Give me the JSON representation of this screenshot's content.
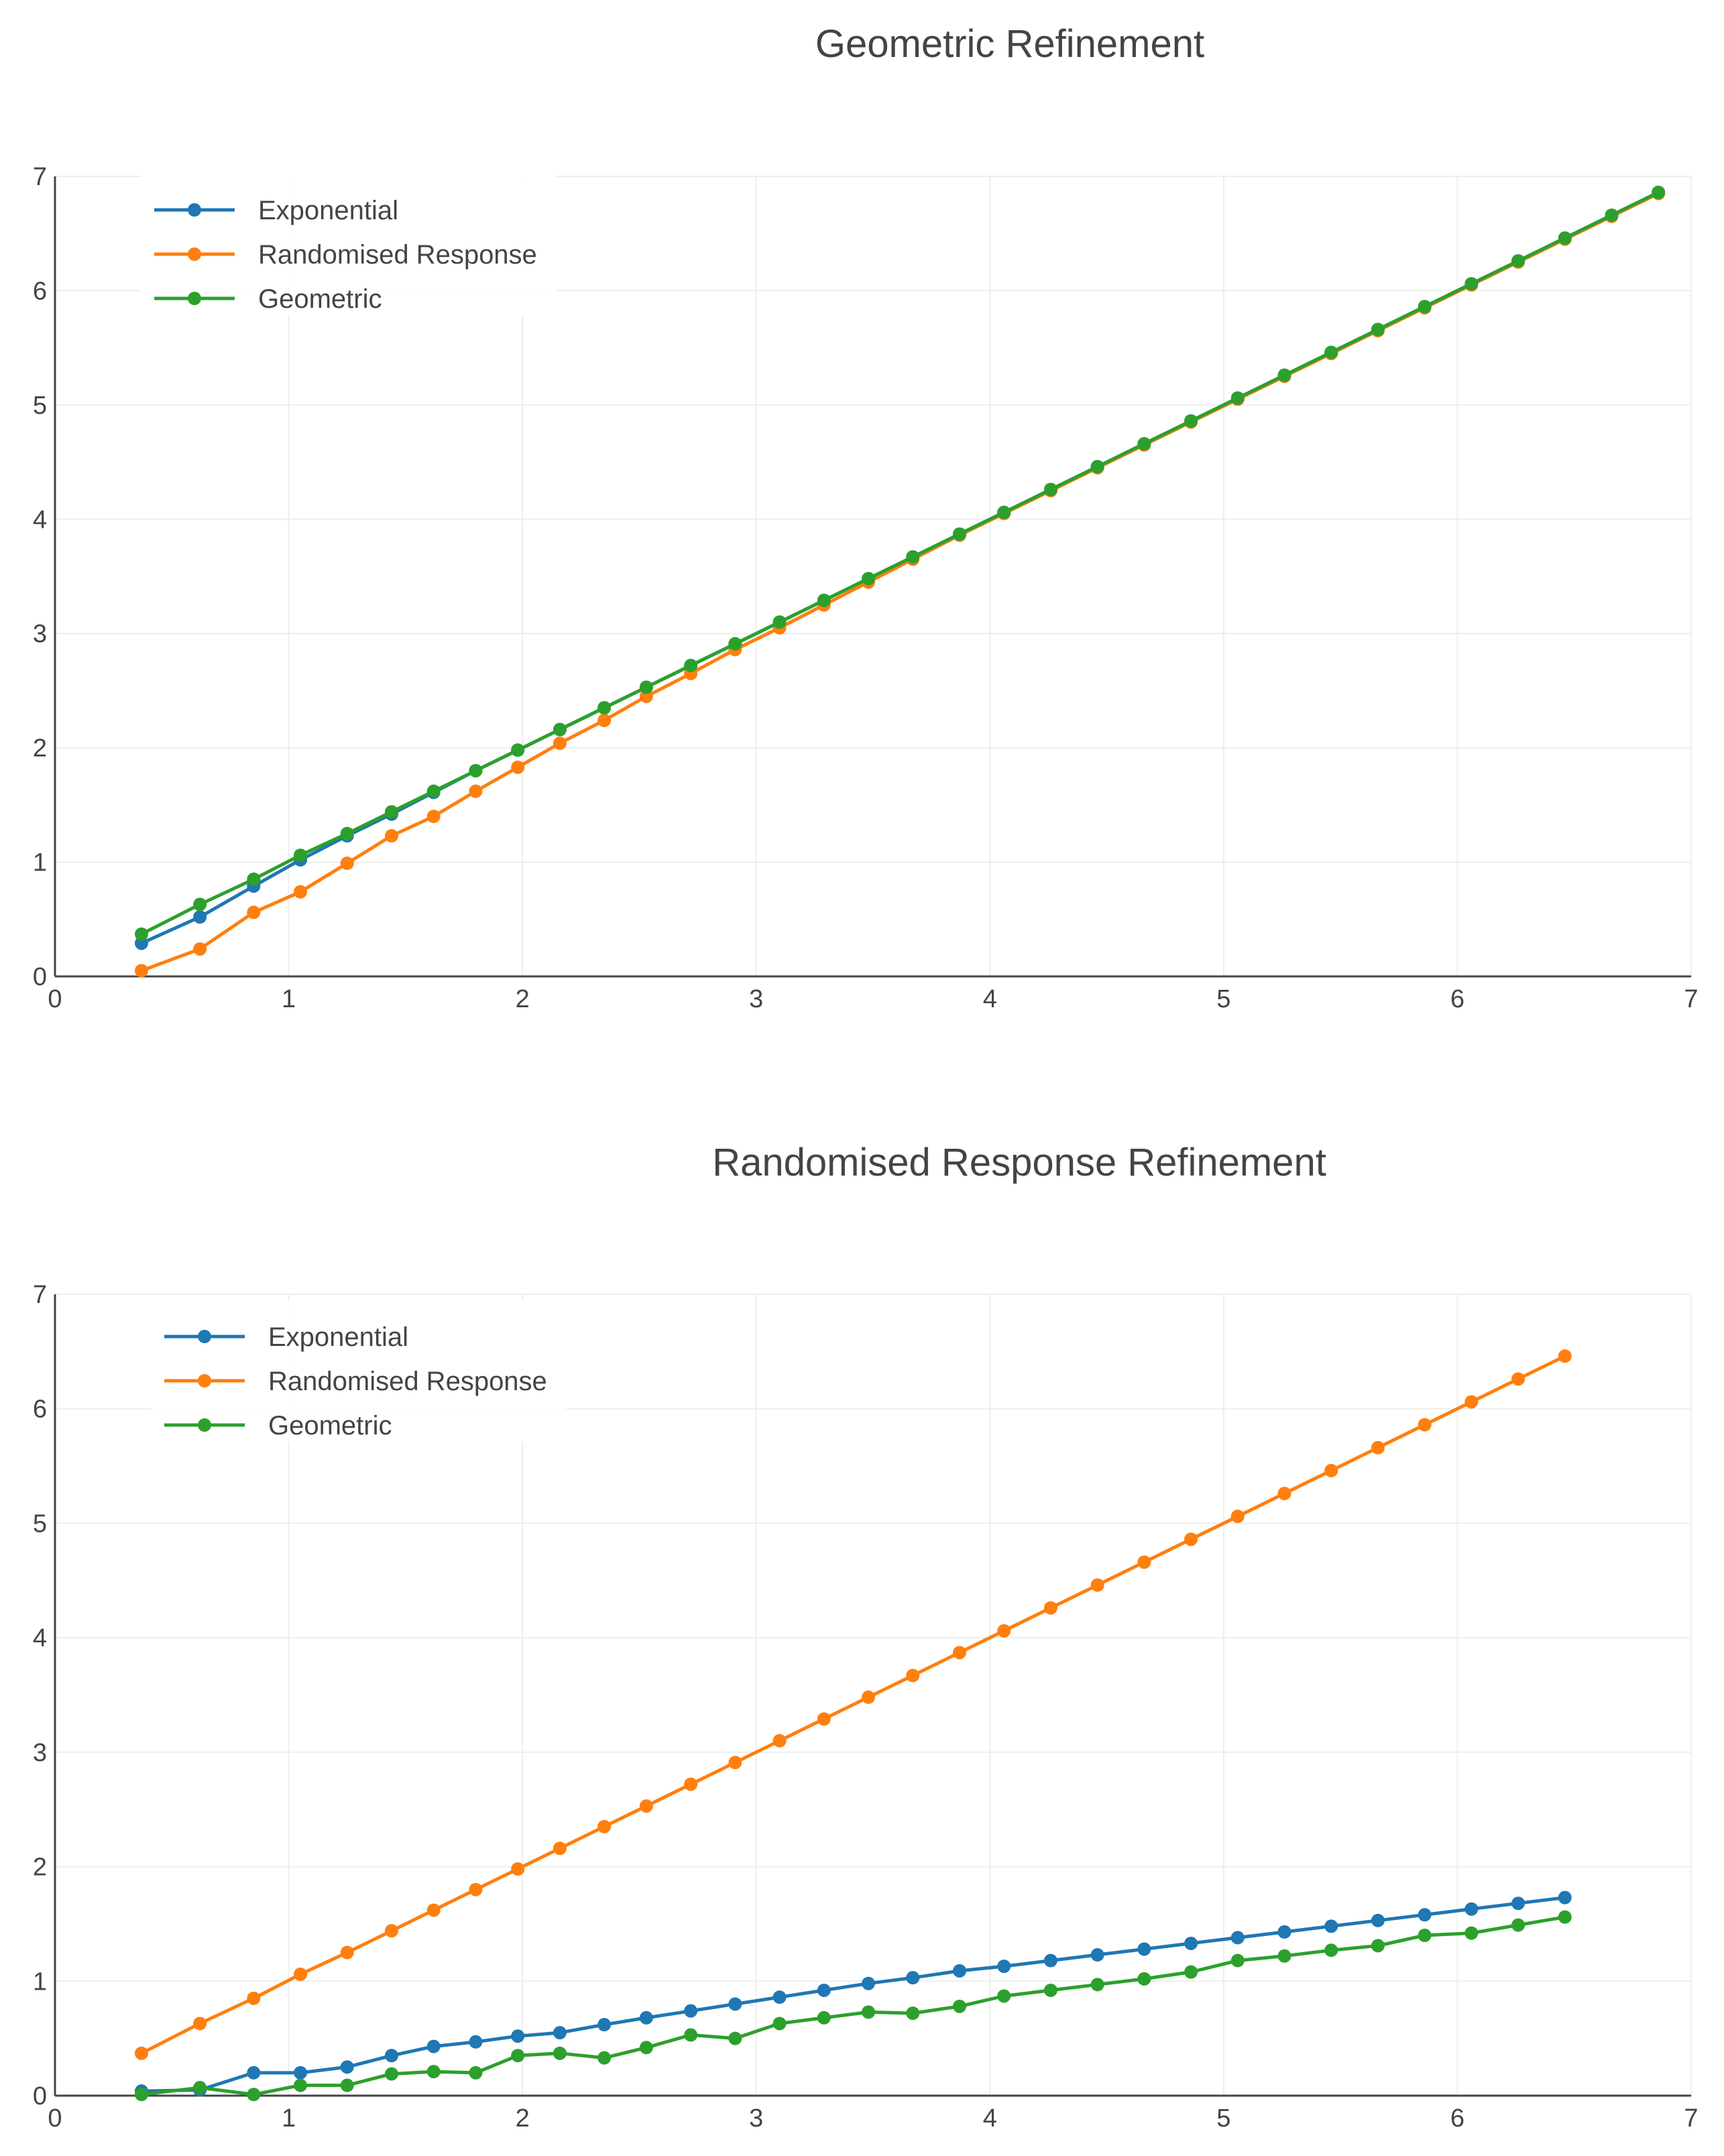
{
  "chart_data": [
    {
      "type": "line",
      "title": "Geometric Refinement",
      "xlabel": "",
      "ylabel": "",
      "xlim": [
        0,
        7
      ],
      "ylim": [
        0,
        7
      ],
      "xticks": [
        "0",
        "1",
        "2",
        "3",
        "4",
        "5",
        "6",
        "7"
      ],
      "yticks": [
        "0",
        "1",
        "2",
        "3",
        "4",
        "5",
        "6",
        "7"
      ],
      "grid": true,
      "legend": "top-left",
      "series": [
        {
          "name": "Exponential",
          "color": "#1f77b4",
          "x": [
            0.37,
            0.62,
            0.85,
            1.05,
            1.25,
            1.44,
            1.62,
            1.8,
            1.98,
            2.16,
            2.35,
            2.53,
            2.72,
            2.91,
            3.1,
            3.29,
            3.48,
            3.67,
            3.87,
            4.06,
            4.26,
            4.46,
            4.66,
            4.86,
            5.06,
            5.26,
            5.46,
            5.66,
            5.86,
            6.06,
            6.26,
            6.46,
            6.66,
            6.86
          ],
          "y": [
            0.29,
            0.52,
            0.79,
            1.02,
            1.23,
            1.42,
            1.61,
            1.8,
            1.98,
            2.16,
            2.35,
            2.53,
            2.72,
            2.91,
            3.1,
            3.29,
            3.48,
            3.67,
            3.87,
            4.06,
            4.26,
            4.46,
            4.66,
            4.86,
            5.06,
            5.26,
            5.46,
            5.66,
            5.86,
            6.06,
            6.26,
            6.46,
            6.66,
            6.86
          ]
        },
        {
          "name": "Randomised Response",
          "color": "#ff7f0e",
          "x": [
            0.37,
            0.62,
            0.85,
            1.05,
            1.25,
            1.44,
            1.62,
            1.8,
            1.98,
            2.16,
            2.35,
            2.53,
            2.72,
            2.91,
            3.1,
            3.29,
            3.48,
            3.67,
            3.87,
            4.06,
            4.26,
            4.46,
            4.66,
            4.86,
            5.06,
            5.26,
            5.46,
            5.66,
            5.86,
            6.06,
            6.26,
            6.46,
            6.66,
            6.86
          ],
          "y": [
            0.05,
            0.24,
            0.56,
            0.74,
            0.99,
            1.23,
            1.4,
            1.62,
            1.83,
            2.04,
            2.24,
            2.45,
            2.65,
            2.86,
            3.05,
            3.25,
            3.45,
            3.65,
            3.86,
            4.05,
            4.25,
            4.45,
            4.65,
            4.85,
            5.05,
            5.25,
            5.45,
            5.65,
            5.85,
            6.05,
            6.25,
            6.45,
            6.65,
            6.85
          ]
        },
        {
          "name": "Geometric",
          "color": "#2ca02c",
          "x": [
            0.37,
            0.62,
            0.85,
            1.05,
            1.25,
            1.44,
            1.62,
            1.8,
            1.98,
            2.16,
            2.35,
            2.53,
            2.72,
            2.91,
            3.1,
            3.29,
            3.48,
            3.67,
            3.87,
            4.06,
            4.26,
            4.46,
            4.66,
            4.86,
            5.06,
            5.26,
            5.46,
            5.66,
            5.86,
            6.06,
            6.26,
            6.46,
            6.66,
            6.86
          ],
          "y": [
            0.37,
            0.63,
            0.85,
            1.06,
            1.25,
            1.44,
            1.62,
            1.8,
            1.98,
            2.16,
            2.35,
            2.53,
            2.72,
            2.91,
            3.1,
            3.29,
            3.48,
            3.67,
            3.87,
            4.06,
            4.26,
            4.46,
            4.66,
            4.86,
            5.06,
            5.26,
            5.46,
            5.66,
            5.86,
            6.06,
            6.26,
            6.46,
            6.66,
            6.86
          ]
        }
      ]
    },
    {
      "type": "line",
      "title": "Randomised Response Refinement",
      "xlabel": "",
      "ylabel": "",
      "xlim": [
        0,
        7
      ],
      "ylim": [
        0,
        7
      ],
      "xticks": [
        "0",
        "1",
        "2",
        "3",
        "4",
        "5",
        "6",
        "7"
      ],
      "yticks": [
        "0",
        "1",
        "2",
        "3",
        "4",
        "5",
        "6",
        "7"
      ],
      "grid": true,
      "legend": "top-left",
      "series": [
        {
          "name": "Exponential",
          "color": "#1f77b4",
          "x": [
            0.37,
            0.62,
            0.85,
            1.05,
            1.25,
            1.44,
            1.62,
            1.8,
            1.98,
            2.16,
            2.35,
            2.53,
            2.72,
            2.91,
            3.1,
            3.29,
            3.48,
            3.67,
            3.87,
            4.06,
            4.26,
            4.46,
            4.66,
            4.86,
            5.06,
            5.26,
            5.46,
            5.66,
            5.86,
            6.06,
            6.26,
            6.46
          ],
          "y": [
            0.04,
            0.05,
            0.2,
            0.2,
            0.25,
            0.35,
            0.43,
            0.47,
            0.52,
            0.55,
            0.62,
            0.68,
            0.74,
            0.8,
            0.86,
            0.92,
            0.98,
            1.03,
            1.09,
            1.13,
            1.18,
            1.23,
            1.28,
            1.33,
            1.38,
            1.43,
            1.48,
            1.53,
            1.58,
            1.63,
            1.68,
            1.73
          ]
        },
        {
          "name": "Randomised Response",
          "color": "#ff7f0e",
          "x": [
            0.37,
            0.62,
            0.85,
            1.05,
            1.25,
            1.44,
            1.62,
            1.8,
            1.98,
            2.16,
            2.35,
            2.53,
            2.72,
            2.91,
            3.1,
            3.29,
            3.48,
            3.67,
            3.87,
            4.06,
            4.26,
            4.46,
            4.66,
            4.86,
            5.06,
            5.26,
            5.46,
            5.66,
            5.86,
            6.06,
            6.26,
            6.46
          ],
          "y": [
            0.37,
            0.63,
            0.85,
            1.06,
            1.25,
            1.44,
            1.62,
            1.8,
            1.98,
            2.16,
            2.35,
            2.53,
            2.72,
            2.91,
            3.1,
            3.29,
            3.48,
            3.67,
            3.87,
            4.06,
            4.26,
            4.46,
            4.66,
            4.86,
            5.06,
            5.26,
            5.46,
            5.66,
            5.86,
            6.06,
            6.26,
            6.46
          ]
        },
        {
          "name": "Geometric",
          "color": "#2ca02c",
          "x": [
            0.37,
            0.62,
            0.85,
            1.05,
            1.25,
            1.44,
            1.62,
            1.8,
            1.98,
            2.16,
            2.35,
            2.53,
            2.72,
            2.91,
            3.1,
            3.29,
            3.48,
            3.67,
            3.87,
            4.06,
            4.26,
            4.46,
            4.66,
            4.86,
            5.06,
            5.26,
            5.46,
            5.66,
            5.86,
            6.06,
            6.26,
            6.46
          ],
          "y": [
            0.01,
            0.07,
            0.01,
            0.09,
            0.09,
            0.19,
            0.21,
            0.2,
            0.35,
            0.37,
            0.33,
            0.42,
            0.53,
            0.5,
            0.63,
            0.68,
            0.73,
            0.72,
            0.78,
            0.87,
            0.92,
            0.97,
            1.02,
            1.08,
            1.18,
            1.22,
            1.27,
            1.31,
            1.4,
            1.42,
            1.49,
            1.56
          ]
        }
      ]
    }
  ]
}
